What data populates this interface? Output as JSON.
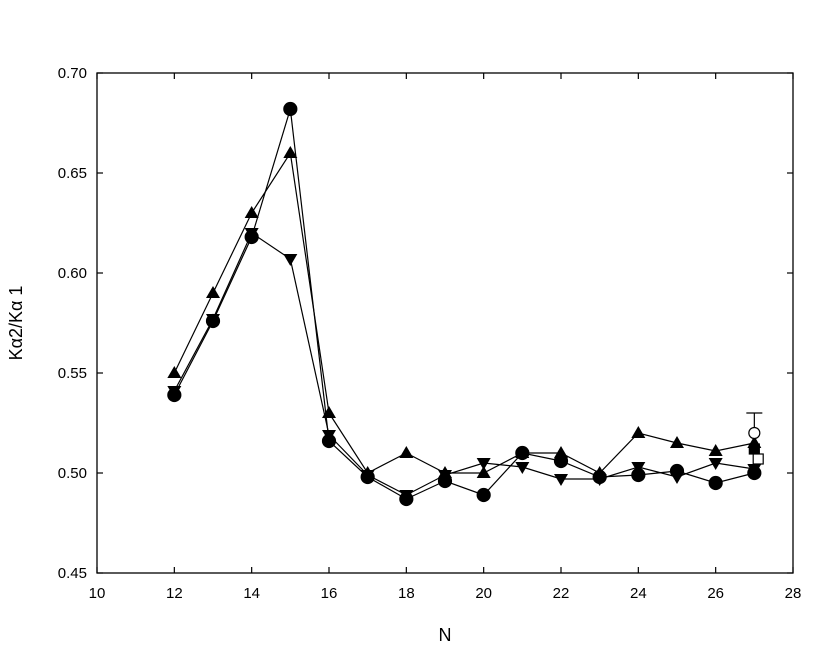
{
  "chart_data": {
    "type": "line",
    "title": "",
    "xlabel": "N",
    "ylabel": "Kα2/Kα 1",
    "xlim": [
      10,
      28
    ],
    "ylim": [
      0.45,
      0.7
    ],
    "xticks": [
      10,
      12,
      14,
      16,
      18,
      20,
      22,
      24,
      26,
      28
    ],
    "yticks": [
      0.45,
      0.5,
      0.55,
      0.6,
      0.65,
      0.7
    ],
    "ytick_format": "0.00",
    "grid": false,
    "legend": "none",
    "series": [
      {
        "marker": "circle",
        "x": [
          12,
          13,
          14,
          15,
          16,
          17,
          18,
          19,
          20,
          21,
          22,
          23,
          24,
          25,
          26,
          27
        ],
        "y": [
          0.539,
          0.576,
          0.618,
          0.682,
          0.516,
          0.498,
          0.487,
          0.496,
          0.489,
          0.51,
          0.506,
          0.498,
          0.499,
          0.501,
          0.495,
          0.5
        ]
      },
      {
        "marker": "triangle-up",
        "x": [
          12,
          13,
          14,
          15,
          16,
          17,
          18,
          19,
          20,
          21,
          22,
          23,
          24,
          25,
          26,
          27
        ],
        "y": [
          0.55,
          0.59,
          0.63,
          0.66,
          0.53,
          0.5,
          0.51,
          0.5,
          0.5,
          0.51,
          0.51,
          0.5,
          0.52,
          0.515,
          0.511,
          0.515
        ]
      },
      {
        "marker": "triangle-down",
        "x": [
          12,
          13,
          14,
          15,
          16,
          17,
          18,
          19,
          20,
          21,
          22,
          23,
          24,
          25,
          26,
          27
        ],
        "y": [
          0.541,
          0.577,
          0.62,
          0.607,
          0.519,
          0.499,
          0.489,
          0.499,
          0.505,
          0.503,
          0.497,
          0.497,
          0.503,
          0.498,
          0.505,
          0.502
        ]
      },
      {
        "marker": "filled-square",
        "line": false,
        "x": [
          27
        ],
        "y": [
          0.512
        ]
      },
      {
        "marker": "open-circle",
        "line": false,
        "x": [
          27
        ],
        "y": [
          0.52
        ],
        "error_upper": [
          0.01
        ]
      },
      {
        "marker": "open-square",
        "line": false,
        "x": [
          27.1
        ],
        "y": [
          0.507
        ]
      }
    ]
  }
}
